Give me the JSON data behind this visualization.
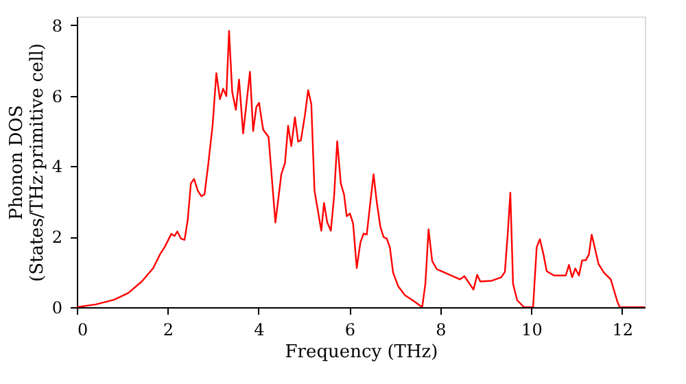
{
  "chart_data": {
    "type": "line",
    "xlabel": "Frequency (THz)",
    "ylabel": "Phonon DOS\n(States/THz·primitive cell)",
    "xlim": [
      0,
      12.5
    ],
    "xticks": [
      0,
      2,
      4,
      6,
      8,
      10,
      12
    ],
    "ylim": [
      0,
      8.25
    ],
    "yticks": [
      0,
      2,
      4,
      6,
      8
    ],
    "grid": false,
    "legend": false,
    "marker": "none",
    "line_style": "solid",
    "series": [
      {
        "color": "#ff0000",
        "x": [
          0,
          0.42,
          0.82,
          1.13,
          1.43,
          1.68,
          1.83,
          1.93,
          2.08,
          2.15,
          2.21,
          2.29,
          2.37,
          2.44,
          2.51,
          2.58,
          2.66,
          2.74,
          2.81,
          2.89,
          2.99,
          3.07,
          3.15,
          3.22,
          3.29,
          3.35,
          3.42,
          3.5,
          3.57,
          3.66,
          3.81,
          3.88,
          3.95,
          4.01,
          4.1,
          4.22,
          4.37,
          4.5,
          4.58,
          4.65,
          4.72,
          4.8,
          4.87,
          4.93,
          5.02,
          5.09,
          5.16,
          5.23,
          5.38,
          5.44,
          5.51,
          5.59,
          5.66,
          5.73,
          5.81,
          5.88,
          5.94,
          6.01,
          6.08,
          6.16,
          6.24,
          6.31,
          6.38,
          6.46,
          6.53,
          6.6,
          6.68,
          6.75,
          6.82,
          6.89,
          6.96,
          7.07,
          7.22,
          7.42,
          7.6,
          7.67,
          7.74,
          7.82,
          7.92,
          8.03,
          8.43,
          8.53,
          8.73,
          8.81,
          8.88,
          9.13,
          9.34,
          9.42,
          9.49,
          9.54,
          9.6,
          9.69,
          9.84,
          10.04,
          10.12,
          10.19,
          10.27,
          10.34,
          10.5,
          10.76,
          10.83,
          10.9,
          10.97,
          11.05,
          11.12,
          11.2,
          11.27,
          11.33,
          11.4,
          11.48,
          11.6,
          11.75,
          11.9,
          11.95,
          12.5
        ],
        "values": [
          0,
          0.08,
          0.21,
          0.4,
          0.73,
          1.11,
          1.5,
          1.7,
          2.08,
          2.02,
          2.15,
          1.95,
          1.91,
          2.47,
          3.51,
          3.64,
          3.31,
          3.15,
          3.2,
          4.03,
          5.19,
          6.64,
          5.9,
          6.2,
          5.99,
          7.84,
          6.1,
          5.6,
          6.46,
          4.93,
          6.68,
          5.0,
          5.68,
          5.8,
          5.04,
          4.83,
          2.4,
          3.77,
          4.09,
          5.15,
          4.57,
          5.39,
          4.7,
          4.73,
          5.45,
          6.16,
          5.77,
          3.31,
          2.17,
          2.96,
          2.41,
          2.17,
          3.12,
          4.71,
          3.51,
          3.2,
          2.58,
          2.66,
          2.37,
          1.11,
          1.83,
          2.09,
          2.06,
          2.99,
          3.77,
          2.99,
          2.28,
          1.99,
          1.95,
          1.69,
          0.98,
          0.6,
          0.34,
          0.17,
          0.0,
          0.66,
          2.21,
          1.31,
          1.08,
          1.02,
          0.79,
          0.88,
          0.5,
          0.92,
          0.73,
          0.75,
          0.85,
          1.0,
          2.21,
          3.25,
          0.66,
          0.2,
          0,
          0,
          1.7,
          1.93,
          1.5,
          1.02,
          0.9,
          0.9,
          1.2,
          0.85,
          1.1,
          0.9,
          1.33,
          1.33,
          1.5,
          2.06,
          1.68,
          1.23,
          0.98,
          0.79,
          0.14,
          0,
          0
        ]
      }
    ]
  }
}
